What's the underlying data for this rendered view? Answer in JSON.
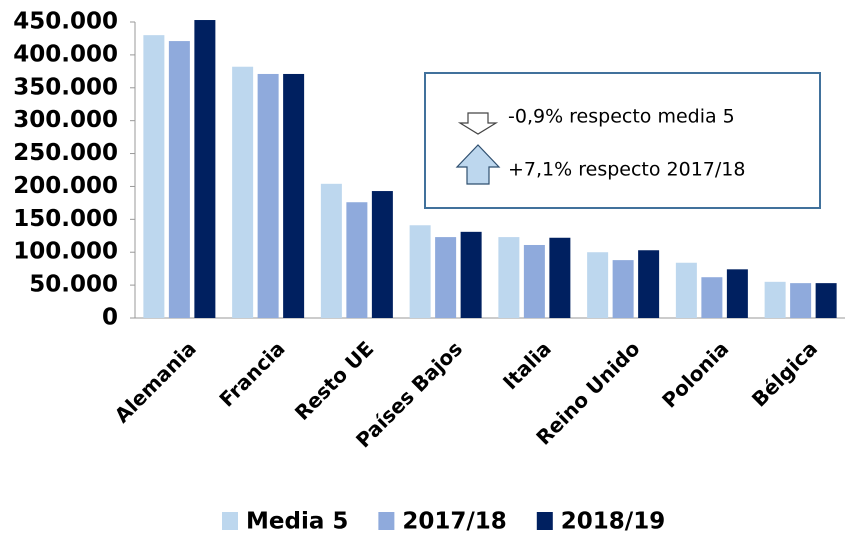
{
  "chart_data": {
    "type": "bar",
    "categories": [
      "Alemania",
      "Francia",
      "Resto UE",
      "Países Bajos",
      "Italia",
      "Reino Unido",
      "Polonia",
      "Bélgica"
    ],
    "series": [
      {
        "name": "Media 5",
        "color": "#bdd7ee",
        "values": [
          430000,
          382000,
          204000,
          141000,
          123000,
          100000,
          84000,
          55000
        ]
      },
      {
        "name": "2017/18",
        "color": "#8faadc",
        "values": [
          421000,
          371000,
          176000,
          123000,
          111000,
          88000,
          62000,
          53000
        ]
      },
      {
        "name": "2018/19",
        "color": "#002060",
        "values": [
          453000,
          371000,
          193000,
          131000,
          122000,
          103000,
          74000,
          53000
        ]
      }
    ],
    "ylim": [
      0,
      450000
    ],
    "yticks": [
      0,
      {
        "value": 50000,
        "label": "50.000"
      },
      {
        "value": 100000,
        "label": "100.000"
      },
      {
        "value": 150000,
        "label": "150.000"
      },
      {
        "value": 200000,
        "label": "200.000"
      },
      {
        "value": 250000,
        "label": "250.000"
      },
      {
        "value": 300000,
        "label": "300.000"
      },
      {
        "value": 350000,
        "label": "350.000"
      },
      {
        "value": 400000,
        "label": "400.000"
      },
      {
        "value": 450000,
        "label": "450.000"
      }
    ],
    "grid": false,
    "annotations": [
      "-0,9% respecto media 5",
      "+7,1% respecto 2017/18"
    ]
  }
}
